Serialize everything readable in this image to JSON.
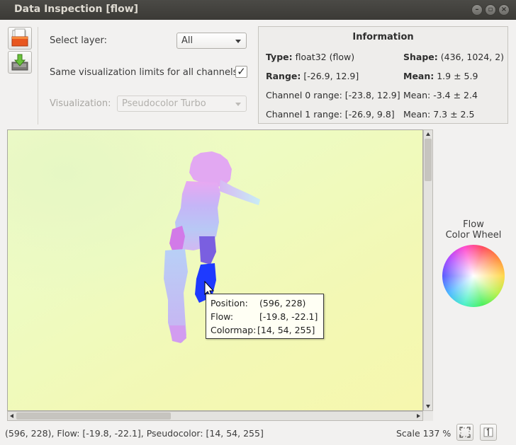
{
  "window": {
    "title": "Data Inspection [flow]"
  },
  "controls": {
    "select_layer_label": "Select layer:",
    "select_layer_value": "All",
    "same_limits_label": "Same visualization limits for all channels:",
    "same_limits_checked": "✓",
    "visualization_label": "Visualization:",
    "visualization_value": "Pseudocolor Turbo"
  },
  "information": {
    "title": "Information",
    "type_label": "Type:",
    "type_value": "float32 (flow)",
    "shape_label": "Shape:",
    "shape_value": "(436, 1024, 2)",
    "range_label": "Range:",
    "range_value": "[-26.9, 12.9]",
    "mean_label": "Mean:",
    "mean_value": "1.9 ± 5.9",
    "channel0_range": "Channel 0 range: [-23.8, 12.9]",
    "channel0_mean": "Mean: -3.4 ± 2.4",
    "channel1_range": "Channel 1 range: [-26.9, 9.8]",
    "channel1_mean": "Mean: 7.3 ± 2.5"
  },
  "tooltip": {
    "position_label": "Position:",
    "position_value": "(596, 228)",
    "flow_label": "Flow:",
    "flow_value": "[-19.8, -22.1]",
    "colormap_label": "Colormap:",
    "colormap_value": "[14, 54, 255]"
  },
  "color_wheel": {
    "title_line1": "Flow",
    "title_line2": "Color Wheel"
  },
  "statusbar": {
    "text": "(596, 228), Flow: [-19.8, -22.1], Pseudocolor: [14, 54, 255]",
    "scale": "Scale 137 %"
  },
  "icons": {
    "open": "folder-open-icon",
    "save": "save-download-icon",
    "zoom_fit": "zoom-fit-icon",
    "zoom_original": "zoom-original-icon"
  }
}
